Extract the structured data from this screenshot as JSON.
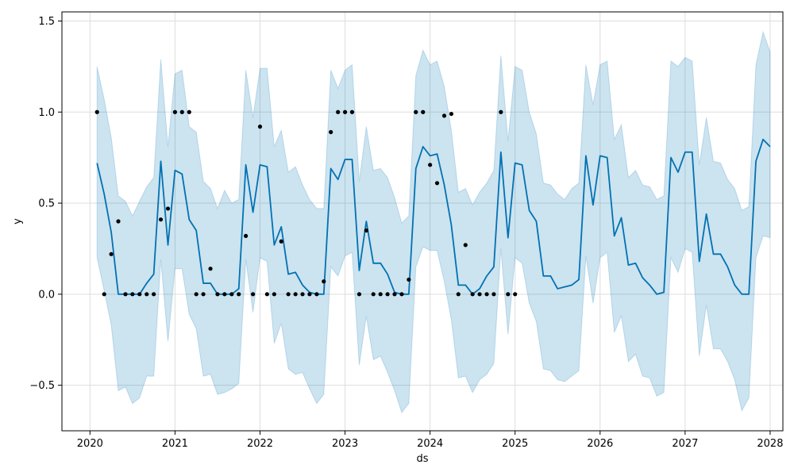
{
  "chart_data": {
    "type": "line",
    "xlabel": "ds",
    "ylabel": "y",
    "xlim": [
      2019.67,
      2028.15
    ],
    "ylim": [
      -0.75,
      1.55
    ],
    "grid": true,
    "x_ticks": [
      {
        "value": 2020,
        "label": "2020"
      },
      {
        "value": 2021,
        "label": "2021"
      },
      {
        "value": 2022,
        "label": "2022"
      },
      {
        "value": 2023,
        "label": "2023"
      },
      {
        "value": 2024,
        "label": "2024"
      },
      {
        "value": 2025,
        "label": "2025"
      },
      {
        "value": 2026,
        "label": "2026"
      },
      {
        "value": 2027,
        "label": "2027"
      },
      {
        "value": 2028,
        "label": "2028"
      }
    ],
    "y_ticks": [
      {
        "value": -0.5,
        "label": "−0.5"
      },
      {
        "value": 0.0,
        "label": "0.0"
      },
      {
        "value": 0.5,
        "label": "0.5"
      },
      {
        "value": 1.0,
        "label": "1.0"
      },
      {
        "value": 1.5,
        "label": "1.5"
      }
    ],
    "colors": {
      "forecast_line": "#0072b2",
      "interval_fill": "#0072b2",
      "observed_points": "#000000",
      "grid": "#dddddd"
    },
    "series": [
      {
        "kind": "observed",
        "x": [
          2020.083,
          2020.167,
          2020.25,
          2020.333,
          2020.417,
          2020.5,
          2020.583,
          2020.667,
          2020.75,
          2020.833,
          2020.917,
          2021.0,
          2021.083,
          2021.167,
          2021.25,
          2021.333,
          2021.417,
          2021.5,
          2021.583,
          2021.667,
          2021.75,
          2021.833,
          2021.917,
          2022.0,
          2022.083,
          2022.167,
          2022.25,
          2022.333,
          2022.417,
          2022.5,
          2022.583,
          2022.667,
          2022.75,
          2022.833,
          2022.917,
          2023.0,
          2023.083,
          2023.167,
          2023.25,
          2023.333,
          2023.417,
          2023.5,
          2023.583,
          2023.667,
          2023.75,
          2023.833,
          2023.917,
          2024.0,
          2024.083,
          2024.167,
          2024.25,
          2024.333,
          2024.417,
          2024.5,
          2024.583,
          2024.667,
          2024.75,
          2024.833,
          2024.917,
          2025.0
        ],
        "y": [
          1.0,
          0.0,
          0.22,
          0.4,
          0.0,
          0.0,
          0.0,
          0.0,
          0.0,
          0.41,
          0.47,
          1.0,
          1.0,
          1.0,
          0.0,
          0.0,
          0.14,
          0.0,
          0.0,
          0.0,
          0.0,
          0.32,
          0.0,
          0.92,
          0.0,
          0.0,
          0.29,
          0.0,
          0.0,
          0.0,
          0.0,
          0.0,
          0.07,
          0.89,
          1.0,
          1.0,
          1.0,
          0.0,
          0.35,
          0.0,
          0.0,
          0.0,
          0.0,
          0.0,
          0.08,
          1.0,
          1.0,
          0.71,
          0.61,
          0.98,
          0.99,
          0.0,
          0.27,
          0.0,
          0.0,
          0.0,
          0.0,
          1.0,
          0.0,
          0.0
        ]
      },
      {
        "kind": "forecast",
        "x": [
          2020.083,
          2020.167,
          2020.25,
          2020.333,
          2020.417,
          2020.5,
          2020.583,
          2020.667,
          2020.75,
          2020.833,
          2020.917,
          2021.0,
          2021.083,
          2021.167,
          2021.25,
          2021.333,
          2021.417,
          2021.5,
          2021.583,
          2021.667,
          2021.75,
          2021.833,
          2021.917,
          2022.0,
          2022.083,
          2022.167,
          2022.25,
          2022.333,
          2022.417,
          2022.5,
          2022.583,
          2022.667,
          2022.75,
          2022.833,
          2022.917,
          2023.0,
          2023.083,
          2023.167,
          2023.25,
          2023.333,
          2023.417,
          2023.5,
          2023.583,
          2023.667,
          2023.75,
          2023.833,
          2023.917,
          2024.0,
          2024.083,
          2024.167,
          2024.25,
          2024.333,
          2024.417,
          2024.5,
          2024.583,
          2024.667,
          2024.75,
          2024.833,
          2024.917,
          2025.0,
          2025.083,
          2025.167,
          2025.25,
          2025.333,
          2025.417,
          2025.5,
          2025.583,
          2025.667,
          2025.75,
          2025.833,
          2025.917,
          2026.0,
          2026.083,
          2026.167,
          2026.25,
          2026.333,
          2026.417,
          2026.5,
          2026.583,
          2026.667,
          2026.75,
          2026.833,
          2026.917,
          2027.0,
          2027.083,
          2027.167,
          2027.25,
          2027.333,
          2027.417,
          2027.5,
          2027.583,
          2027.667,
          2027.75,
          2027.833,
          2027.917,
          2028.0
        ],
        "yhat": [
          0.72,
          0.55,
          0.34,
          0.0,
          0.0,
          0.0,
          0.0,
          0.06,
          0.11,
          0.73,
          0.27,
          0.68,
          0.66,
          0.41,
          0.35,
          0.06,
          0.06,
          0.0,
          0.0,
          0.0,
          0.03,
          0.71,
          0.45,
          0.71,
          0.7,
          0.27,
          0.37,
          0.11,
          0.12,
          0.05,
          0.01,
          0.0,
          0.0,
          0.69,
          0.63,
          0.74,
          0.74,
          0.13,
          0.4,
          0.17,
          0.17,
          0.11,
          0.01,
          0.0,
          0.0,
          0.69,
          0.81,
          0.76,
          0.77,
          0.6,
          0.38,
          0.05,
          0.05,
          0.0,
          0.03,
          0.1,
          0.15,
          0.78,
          0.31,
          0.72,
          0.71,
          0.46,
          0.4,
          0.1,
          0.1,
          0.03,
          0.04,
          0.05,
          0.08,
          0.76,
          0.49,
          0.76,
          0.75,
          0.32,
          0.42,
          0.16,
          0.17,
          0.09,
          0.05,
          0.0,
          0.01,
          0.75,
          0.67,
          0.78,
          0.78,
          0.18,
          0.44,
          0.22,
          0.22,
          0.15,
          0.05,
          0.0,
          0.0,
          0.73,
          0.85,
          0.81
        ],
        "yhat_upper": [
          1.25,
          1.07,
          0.86,
          0.54,
          0.51,
          0.43,
          0.51,
          0.59,
          0.64,
          1.29,
          0.81,
          1.21,
          1.23,
          0.92,
          0.89,
          0.62,
          0.58,
          0.47,
          0.57,
          0.5,
          0.52,
          1.23,
          0.97,
          1.24,
          1.24,
          0.81,
          0.9,
          0.67,
          0.7,
          0.6,
          0.52,
          0.47,
          0.47,
          1.23,
          1.13,
          1.23,
          1.26,
          0.62,
          0.92,
          0.68,
          0.69,
          0.64,
          0.53,
          0.39,
          0.43,
          1.2,
          1.34,
          1.26,
          1.28,
          1.14,
          0.9,
          0.56,
          0.58,
          0.49,
          0.56,
          0.61,
          0.68,
          1.31,
          0.84,
          1.25,
          1.23,
          1.0,
          0.88,
          0.61,
          0.6,
          0.55,
          0.52,
          0.58,
          0.61,
          1.26,
          1.04,
          1.26,
          1.28,
          0.85,
          0.93,
          0.64,
          0.68,
          0.6,
          0.59,
          0.52,
          0.54,
          1.28,
          1.25,
          1.3,
          1.28,
          0.71,
          0.97,
          0.73,
          0.72,
          0.63,
          0.58,
          0.46,
          0.48,
          1.26,
          1.44,
          1.33
        ],
        "yhat_lower": [
          0.2,
          0.02,
          -0.17,
          -0.53,
          -0.51,
          -0.6,
          -0.57,
          -0.45,
          -0.45,
          0.19,
          -0.26,
          0.14,
          0.14,
          -0.11,
          -0.19,
          -0.45,
          -0.44,
          -0.55,
          -0.54,
          -0.52,
          -0.49,
          0.19,
          -0.1,
          0.2,
          0.18,
          -0.27,
          -0.16,
          -0.41,
          -0.44,
          -0.43,
          -0.52,
          -0.6,
          -0.55,
          0.15,
          0.1,
          0.21,
          0.23,
          -0.39,
          -0.12,
          -0.36,
          -0.34,
          -0.43,
          -0.53,
          -0.65,
          -0.6,
          0.15,
          0.26,
          0.24,
          0.24,
          0.07,
          -0.14,
          -0.46,
          -0.45,
          -0.54,
          -0.47,
          -0.44,
          -0.38,
          0.25,
          -0.22,
          0.2,
          0.17,
          -0.05,
          -0.15,
          -0.41,
          -0.42,
          -0.47,
          -0.48,
          -0.45,
          -0.42,
          0.21,
          -0.05,
          0.2,
          0.23,
          -0.21,
          -0.12,
          -0.37,
          -0.33,
          -0.45,
          -0.46,
          -0.56,
          -0.54,
          0.2,
          0.12,
          0.25,
          0.23,
          -0.34,
          -0.06,
          -0.3,
          -0.3,
          -0.37,
          -0.47,
          -0.64,
          -0.57,
          0.2,
          0.32,
          0.31
        ]
      }
    ]
  }
}
